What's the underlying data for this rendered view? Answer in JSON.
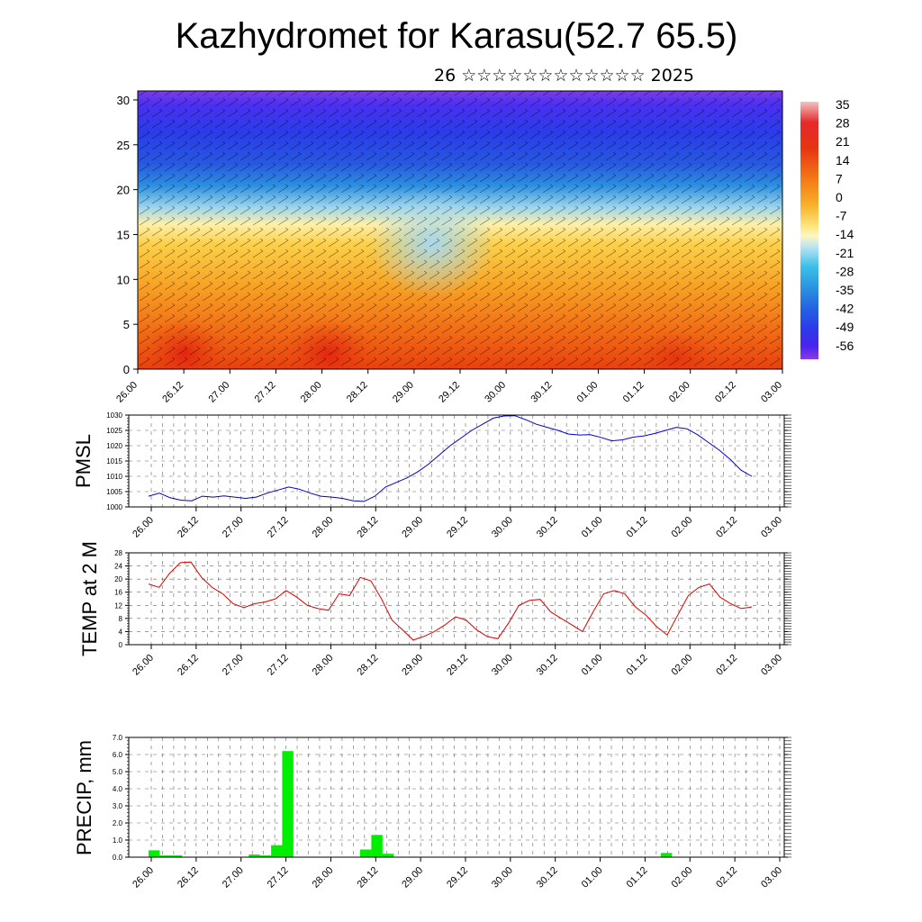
{
  "title": "Kazhydromet for Karasu(52.7 65.5)",
  "subtitle": "26 ☆☆☆☆☆☆☆☆☆☆☆☆ 2025",
  "x_tick_labels": [
    "26.00",
    "26.12",
    "27.00",
    "27.12",
    "28.00",
    "28.12",
    "29.00",
    "29.12",
    "30.00",
    "30.12",
    "01.00",
    "01.12",
    "02.00",
    "02.12",
    "03.00"
  ],
  "colors": {
    "pmsl_line": "#0000cc",
    "temp_line": "#dd0000",
    "precip_bar": "#00ee00",
    "grid": "#666666"
  },
  "chart_data": [
    {
      "type": "heatmap",
      "title": "",
      "ylabel": "",
      "yticks": [
        0,
        5,
        10,
        15,
        20,
        25,
        30
      ],
      "ylim": [
        0,
        31
      ],
      "x_categories": [
        "26.00",
        "26.12",
        "27.00",
        "27.12",
        "28.00",
        "28.12",
        "29.00",
        "29.12",
        "30.00",
        "30.12",
        "01.00",
        "01.12",
        "02.00",
        "02.12",
        "03.00"
      ],
      "colorbar_labels": [
        "35",
        "28",
        "21",
        "14",
        "7",
        "0",
        "-7",
        "-14",
        "-21",
        "-28",
        "-35",
        "-42",
        "-49",
        "-56"
      ],
      "colorbar_colors": [
        "#f2b3b3",
        "#e8302a",
        "#e63010",
        "#f06a10",
        "#f6a020",
        "#fad850",
        "#fff0a0",
        "#b8e4f0",
        "#40c0e8",
        "#2890e0",
        "#2060e0",
        "#2838e8",
        "#4020f0",
        "#7838e8"
      ],
      "annotation": "wind barbs overlaid"
    },
    {
      "type": "line",
      "ylabel": "PMSL",
      "ylim": [
        1000,
        1030
      ],
      "yticks": [
        1000,
        1005,
        1010,
        1015,
        1020,
        1025,
        1030
      ],
      "series": [
        {
          "values": [
            1003.5,
            1004.5,
            1003.0,
            1002.2,
            1002.0,
            1003.5,
            1003.2,
            1003.6,
            1003.2,
            1002.8,
            1003.2,
            1004.5,
            1005.5,
            1006.5,
            1005.8,
            1004.5,
            1003.5,
            1003.2,
            1002.8,
            1002.0,
            1001.8,
            1003.5,
            1006.5,
            1008.0,
            1009.5,
            1011.5,
            1014.0,
            1017.0,
            1020.0,
            1022.5,
            1025.0,
            1027.0,
            1029.0,
            1029.7,
            1029.8,
            1028.5,
            1027.0,
            1026.0,
            1025.0,
            1023.8,
            1023.5,
            1023.6,
            1022.7,
            1021.6,
            1021.9,
            1022.8,
            1023.2,
            1024.0,
            1025.0,
            1026.0,
            1025.5,
            1023.5,
            1021.0,
            1018.5,
            1015.5,
            1012.0,
            1010.0
          ]
        }
      ]
    },
    {
      "type": "line",
      "ylabel": "TEMP at 2 M",
      "ylim": [
        0,
        28
      ],
      "yticks": [
        0,
        4,
        8,
        12,
        16,
        20,
        24,
        28
      ],
      "series": [
        {
          "values": [
            18.5,
            17.5,
            21.8,
            25.0,
            25.2,
            20.5,
            17.5,
            15.5,
            12.5,
            11.3,
            12.5,
            13.0,
            14.0,
            16.5,
            14.5,
            12.0,
            11.0,
            10.5,
            15.5,
            15.0,
            20.5,
            19.5,
            14.0,
            7.5,
            4.5,
            1.4,
            2.5,
            4.0,
            6.0,
            8.5,
            7.5,
            4.5,
            2.5,
            1.8,
            6.5,
            12.0,
            13.5,
            13.8,
            10.0,
            8.0,
            6.0,
            4.0,
            10.0,
            15.5,
            16.5,
            15.5,
            11.5,
            9.0,
            5.5,
            3.0,
            9.0,
            15.0,
            17.5,
            18.5,
            14.5,
            12.5,
            11.0,
            11.5
          ]
        }
      ]
    },
    {
      "type": "bar",
      "ylabel": "PRECIP, mm",
      "ylim": [
        0,
        7
      ],
      "yticks": [
        "0.0",
        "1.0",
        "2.0",
        "3.0",
        "4.0",
        "5.0",
        "6.0",
        "7.0"
      ],
      "values": [
        0.4,
        0.1,
        0.1,
        0,
        0,
        0,
        0,
        0,
        0,
        0.15,
        0.1,
        0.7,
        6.2,
        0,
        0,
        0,
        0,
        0,
        0,
        0.45,
        1.3,
        0.2,
        0,
        0,
        0,
        0,
        0,
        0,
        0,
        0,
        0,
        0,
        0,
        0,
        0,
        0,
        0,
        0,
        0,
        0,
        0,
        0,
        0,
        0,
        0,
        0,
        0.25,
        0,
        0,
        0,
        0,
        0,
        0,
        0,
        0,
        0,
        0
      ]
    }
  ]
}
